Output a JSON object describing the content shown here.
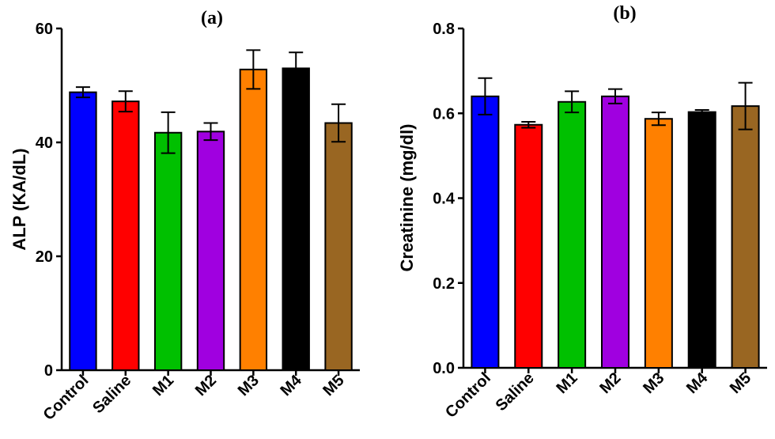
{
  "chart_data": [
    {
      "type": "bar",
      "title": "(a)",
      "ylabel": "ALP (KA/dL)",
      "xlabel": "",
      "ylim": [
        0,
        60
      ],
      "yticks": [
        "0",
        "20",
        "40",
        "60"
      ],
      "categories": [
        "Control",
        "Saline",
        "M1",
        "M2",
        "M3",
        "M4",
        "M5"
      ],
      "values": [
        48.8,
        47.2,
        41.7,
        41.9,
        52.8,
        53.0,
        43.4
      ],
      "errors": [
        0.9,
        1.8,
        3.6,
        1.5,
        3.4,
        2.8,
        3.3
      ],
      "colors": [
        "#0000ff",
        "#ff0000",
        "#00c000",
        "#a000e0",
        "#ff8000",
        "#000000",
        "#996622"
      ]
    },
    {
      "type": "bar",
      "title": "(b)",
      "ylabel": "Creatinine (mg/dl)",
      "xlabel": "",
      "ylim": [
        0,
        0.8
      ],
      "yticks": [
        "0.0",
        "0.2",
        "0.4",
        "0.6",
        "0.8"
      ],
      "categories": [
        "Control",
        "Saline",
        "M1",
        "M2",
        "M3",
        "M4",
        "M5"
      ],
      "values": [
        0.64,
        0.573,
        0.627,
        0.64,
        0.587,
        0.603,
        0.617
      ],
      "errors": [
        0.043,
        0.007,
        0.025,
        0.017,
        0.015,
        0.005,
        0.055
      ],
      "colors": [
        "#0000ff",
        "#ff0000",
        "#00c000",
        "#a000e0",
        "#ff8000",
        "#000000",
        "#996622"
      ]
    }
  ]
}
